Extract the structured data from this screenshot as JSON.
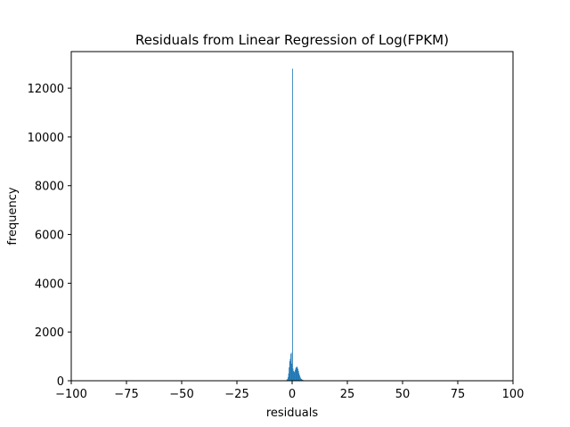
{
  "chart_data": {
    "type": "bar",
    "title": "Residuals from Linear Regression of Log(FPKM)",
    "xlabel": "residuals",
    "ylabel": "frequency",
    "xlim": [
      -100,
      100
    ],
    "ylim": [
      0,
      13500
    ],
    "xticks": [
      -100,
      -75,
      -50,
      -25,
      0,
      25,
      50,
      75,
      100
    ],
    "xtick_labels": [
      "−100",
      "−75",
      "−50",
      "−25",
      "0",
      "25",
      "50",
      "75",
      "100"
    ],
    "yticks": [
      0,
      2000,
      4000,
      6000,
      8000,
      10000,
      12000
    ],
    "ytick_labels": [
      "0",
      "2000",
      "4000",
      "6000",
      "8000",
      "10000",
      "12000"
    ],
    "grid": false,
    "bar_color": "#1f77b4",
    "series": [
      {
        "x": [
          -3.0,
          -2.5,
          -2.0,
          -1.75,
          -1.5,
          -1.25,
          -1.0,
          -0.75,
          -0.5,
          -0.25,
          0.0,
          0.25,
          0.5,
          0.75,
          1.0,
          1.25,
          1.5,
          1.75,
          2.0,
          2.25,
          2.5,
          2.75,
          3.0,
          3.25,
          3.5,
          3.75,
          4.0,
          4.5,
          5.0,
          5.5
        ],
        "values": [
          20,
          60,
          150,
          300,
          550,
          800,
          900,
          1100,
          1150,
          700,
          12800,
          500,
          400,
          350,
          380,
          450,
          520,
          560,
          580,
          540,
          480,
          400,
          300,
          220,
          160,
          100,
          70,
          40,
          20,
          10
        ]
      }
    ]
  }
}
